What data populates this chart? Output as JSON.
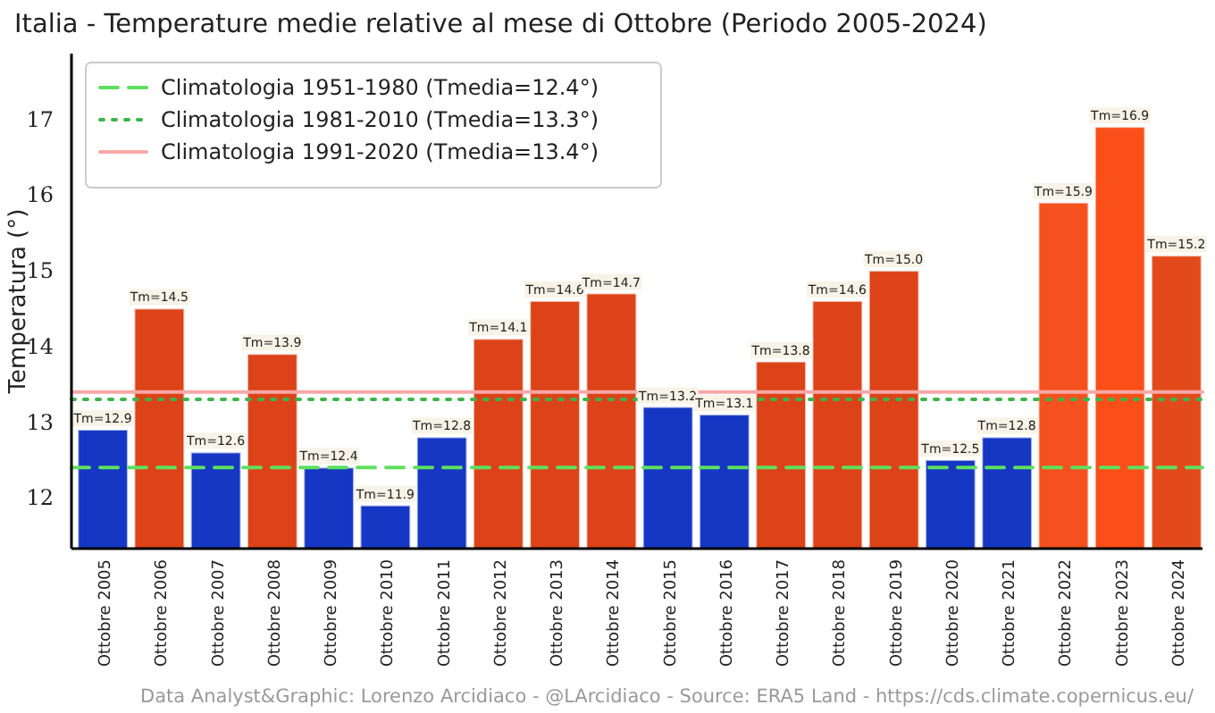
{
  "chart_data": {
    "type": "bar",
    "title": "Italia - Temperature medie relative al mese di Ottobre (Periodo 2005-2024)",
    "ylabel": "Temperatura (°)",
    "categories": [
      "Ottobre 2005",
      "Ottobre 2006",
      "Ottobre 2007",
      "Ottobre 2008",
      "Ottobre 2009",
      "Ottobre 2010",
      "Ottobre 2011",
      "Ottobre 2012",
      "Ottobre 2013",
      "Ottobre 2014",
      "Ottobre 2015",
      "Ottobre 2016",
      "Ottobre 2017",
      "Ottobre 2018",
      "Ottobre 2019",
      "Ottobre 2020",
      "Ottobre 2021",
      "Ottobre 2022",
      "Ottobre 2023",
      "Ottobre 2024"
    ],
    "values": [
      12.9,
      14.5,
      12.6,
      13.9,
      12.4,
      11.9,
      12.8,
      14.1,
      14.6,
      14.7,
      13.2,
      13.1,
      13.8,
      14.6,
      15.0,
      12.5,
      12.8,
      15.9,
      16.9,
      15.2
    ],
    "value_labels": [
      "Tm=12.9",
      "Tm=14.5",
      "Tm=12.6",
      "Tm=13.9",
      "Tm=12.4",
      "Tm=11.9",
      "Tm=12.8",
      "Tm=14.1",
      "Tm=14.6",
      "Tm=14.7",
      "Tm=13.2",
      "Tm=13.1",
      "Tm=13.8",
      "Tm=14.6",
      "Tm=15.0",
      "Tm=12.5",
      "Tm=12.8",
      "Tm=15.9",
      "Tm=16.9",
      "Tm=15.2"
    ],
    "colors": [
      "#1637c4",
      "#dc4318",
      "#1637c4",
      "#dc4318",
      "#1637c4",
      "#1637c4",
      "#1637c4",
      "#dc4318",
      "#dc4318",
      "#dc4318",
      "#1637c4",
      "#1637c4",
      "#dc4318",
      "#dc4318",
      "#dc4318",
      "#1637c4",
      "#1637c4",
      "#f4511e",
      "#fa4f19",
      "#e24a1c"
    ],
    "ylim": [
      11.33,
      17.87
    ],
    "yticks": [
      12,
      13,
      14,
      15,
      16,
      17
    ],
    "grid": false,
    "legend": "top left",
    "ref_lines": [
      {
        "axis": "y",
        "value": 12.4,
        "label": "Climatologia 1951-1980 (Tmedia=12.4°)",
        "color": "#5ee05e",
        "line_style": "dashed"
      },
      {
        "axis": "y",
        "value": 13.3,
        "label": "Climatologia 1981-2010 (Tmedia=13.3°)",
        "color": "#3cb44b",
        "line_style": "dotted"
      },
      {
        "axis": "y",
        "value": 13.4,
        "label": "Climatologia 1991-2020 (Tmedia=13.4°)",
        "color": "#f7a8a8",
        "line_style": "solid"
      }
    ],
    "annotations": [
      "Data Analyst&Graphic: Lorenzo Arcidiaco - @LArcidiaco - Source: ERA5 Land - https://cds.climate.copernicus.eu/"
    ]
  }
}
